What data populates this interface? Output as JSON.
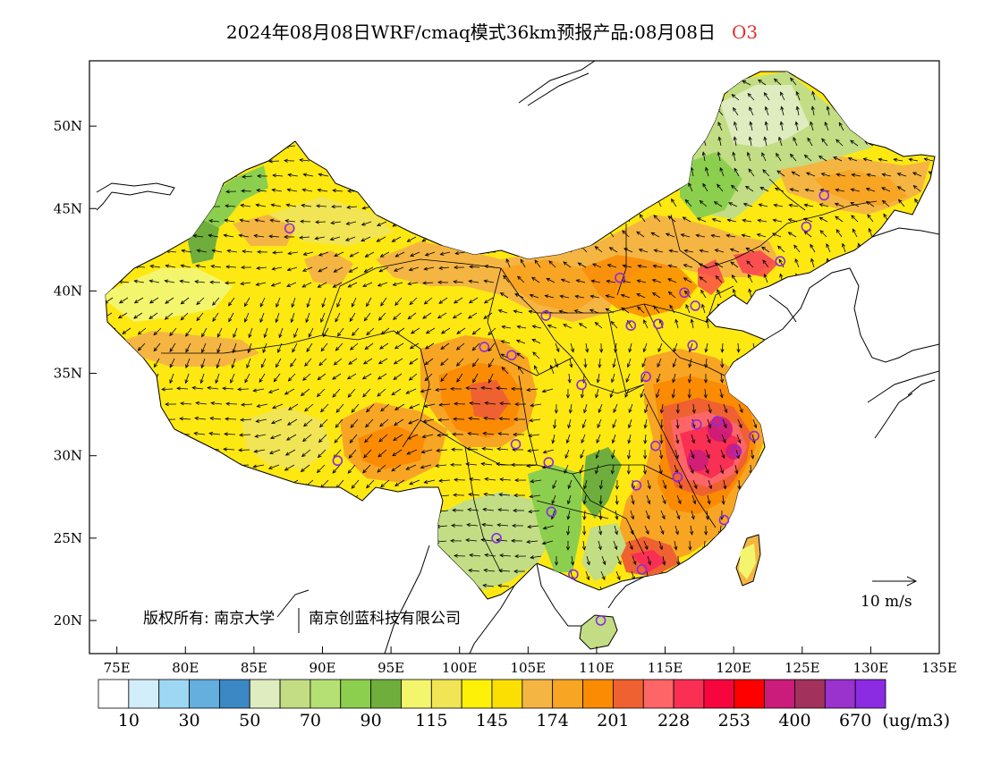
{
  "title": {
    "main": "2024年08月08日WRF/cmaq模式36km预报产品:08月08日",
    "pollutant": "O3"
  },
  "map": {
    "lat_ticks": [
      "50N",
      "45N",
      "40N",
      "35N",
      "30N",
      "25N",
      "20N"
    ],
    "lon_ticks": [
      "75E",
      "80E",
      "85E",
      "90E",
      "95E",
      "100E",
      "105E",
      "110E",
      "115E",
      "120E",
      "125E",
      "130E",
      "135E"
    ],
    "copyright": "版权所有: 南京大学",
    "copyright_org": "南京创蓝科技有限公司",
    "wind_scale_label": "10 m/s"
  },
  "legend": {
    "unit": "(ug/m3)",
    "labels": [
      "10",
      "30",
      "50",
      "70",
      "90",
      "115",
      "145",
      "174",
      "201",
      "228",
      "253",
      "400",
      "670"
    ],
    "colors": [
      "#ffffff",
      "#d3eefb",
      "#9dd7f3",
      "#64afde",
      "#3b88c4",
      "#dfecbf",
      "#c2dd83",
      "#b5e073",
      "#8ccf4e",
      "#6fae3c",
      "#f3f66d",
      "#f1e455",
      "#fef108",
      "#fbde02",
      "#f5b543",
      "#f8a524",
      "#fa8b03",
      "#ef6130",
      "#fe6567",
      "#f92f53",
      "#f6063d",
      "#ff0000",
      "#cb1b7b",
      "#a2325b",
      "#9a32cd",
      "#8b2be2"
    ]
  },
  "stations": [
    {
      "lon": 87.6,
      "lat": 43.8
    },
    {
      "lon": 91.1,
      "lat": 29.7
    },
    {
      "lon": 101.8,
      "lat": 36.6
    },
    {
      "lon": 103.8,
      "lat": 36.1
    },
    {
      "lon": 106.3,
      "lat": 38.5
    },
    {
      "lon": 111.7,
      "lat": 40.8
    },
    {
      "lon": 112.5,
      "lat": 37.9
    },
    {
      "lon": 114.5,
      "lat": 38.0
    },
    {
      "lon": 116.4,
      "lat": 39.9
    },
    {
      "lon": 117.2,
      "lat": 39.1
    },
    {
      "lon": 117.0,
      "lat": 36.7
    },
    {
      "lon": 113.6,
      "lat": 34.8
    },
    {
      "lon": 108.9,
      "lat": 34.3
    },
    {
      "lon": 104.1,
      "lat": 30.7
    },
    {
      "lon": 106.5,
      "lat": 29.6
    },
    {
      "lon": 114.3,
      "lat": 30.6
    },
    {
      "lon": 112.9,
      "lat": 28.2
    },
    {
      "lon": 115.9,
      "lat": 28.7
    },
    {
      "lon": 117.3,
      "lat": 31.9
    },
    {
      "lon": 118.8,
      "lat": 32.1
    },
    {
      "lon": 120.2,
      "lat": 30.3
    },
    {
      "lon": 121.5,
      "lat": 31.2
    },
    {
      "lon": 119.3,
      "lat": 26.1
    },
    {
      "lon": 113.3,
      "lat": 23.1
    },
    {
      "lon": 108.3,
      "lat": 22.8
    },
    {
      "lon": 106.7,
      "lat": 26.6
    },
    {
      "lon": 102.7,
      "lat": 25.0
    },
    {
      "lon": 110.3,
      "lat": 20.0
    },
    {
      "lon": 123.4,
      "lat": 41.8
    },
    {
      "lon": 125.3,
      "lat": 43.9
    },
    {
      "lon": 126.6,
      "lat": 45.8
    }
  ]
}
